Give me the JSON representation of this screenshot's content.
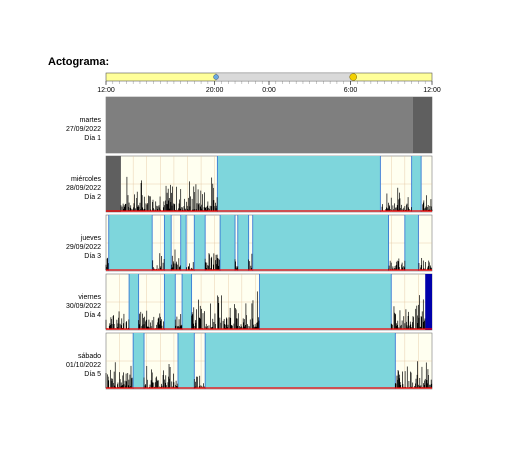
{
  "title": "Actograma:",
  "time_bar": {
    "ticks": [
      "12:00",
      "20:00",
      "0:00",
      "6:00",
      "12:00"
    ],
    "tick_hours": [
      0,
      8,
      12,
      18,
      24
    ],
    "night_range_hours": [
      8.1,
      18.2
    ],
    "sunset_hour": 8.1,
    "sunrise_hour": 18.2
  },
  "colors": {
    "activity": "#000000",
    "sleep": "#7ed6dc",
    "sleep_edge": "#3a7bd5",
    "night_bg": "#fffff0",
    "grid": "#e2c39c",
    "no_data": "#7f7f7f",
    "off_wrist": "#0000aa",
    "light": "#ff0000",
    "bar_day": "#ffff99",
    "bar_night": "#d9d9d9"
  },
  "chart_data": {
    "type": "actogram",
    "x_unit": "hours from 12:00",
    "xlim": [
      0,
      24
    ],
    "days": [
      {
        "weekday": "martes",
        "date": "27/09/2022",
        "label": "Día 1",
        "no_data": [
          [
            0,
            22.6
          ]
        ],
        "no_data_dark": [
          [
            22.6,
            24
          ]
        ],
        "sleep": [],
        "activity": []
      },
      {
        "weekday": "miércoles",
        "date": "28/09/2022",
        "label": "Día 2",
        "no_data_dark": [
          [
            0,
            1.1
          ]
        ],
        "sleep": [
          [
            8.2,
            20.2
          ],
          [
            22.5,
            23.2
          ]
        ],
        "off_wrist": [],
        "activity": [
          [
            1.1,
            8.2,
            0.55
          ],
          [
            20.2,
            22.5,
            0.4
          ],
          [
            23.2,
            24,
            0.25
          ]
        ]
      },
      {
        "weekday": "jueves",
        "date": "29/09/2022",
        "label": "Día 3",
        "sleep": [
          [
            0.2,
            3.4
          ],
          [
            4.3,
            4.8
          ],
          [
            5.5,
            5.9
          ],
          [
            6.5,
            7.3
          ],
          [
            8.4,
            9.5
          ],
          [
            9.7,
            10.5
          ],
          [
            10.8,
            20.8
          ],
          [
            22.0,
            23.0
          ]
        ],
        "off_wrist": [],
        "activity": [
          [
            0,
            0.2,
            0.3
          ],
          [
            3.4,
            4.3,
            0.35
          ],
          [
            4.8,
            5.5,
            0.3
          ],
          [
            5.9,
            6.5,
            0.3
          ],
          [
            7.3,
            8.4,
            0.45
          ],
          [
            9.5,
            9.7,
            0.3
          ],
          [
            10.5,
            10.8,
            0.3
          ],
          [
            20.8,
            22.0,
            0.35
          ],
          [
            23.0,
            24,
            0.2
          ]
        ]
      },
      {
        "weekday": "viernes",
        "date": "30/09/2022",
        "label": "Día 4",
        "sleep": [
          [
            1.7,
            2.4
          ],
          [
            4.3,
            5.1
          ],
          [
            5.6,
            6.3
          ],
          [
            11.3,
            21.0
          ]
        ],
        "off_wrist": [
          [
            23.5,
            24
          ]
        ],
        "activity": [
          [
            0,
            1.7,
            0.3
          ],
          [
            2.4,
            4.3,
            0.35
          ],
          [
            5.1,
            5.6,
            0.3
          ],
          [
            6.3,
            11.3,
            0.55
          ],
          [
            21.0,
            23.5,
            0.55
          ]
        ]
      },
      {
        "weekday": "sábado",
        "date": "01/10/2022",
        "label": "Día 5",
        "sleep": [
          [
            2.0,
            2.8
          ],
          [
            5.3,
            6.5
          ],
          [
            7.3,
            21.3
          ]
        ],
        "off_wrist": [],
        "activity": [
          [
            0,
            2.0,
            0.45
          ],
          [
            2.8,
            5.3,
            0.4
          ],
          [
            6.5,
            7.3,
            0.3
          ],
          [
            21.3,
            24,
            0.45
          ]
        ]
      }
    ]
  }
}
